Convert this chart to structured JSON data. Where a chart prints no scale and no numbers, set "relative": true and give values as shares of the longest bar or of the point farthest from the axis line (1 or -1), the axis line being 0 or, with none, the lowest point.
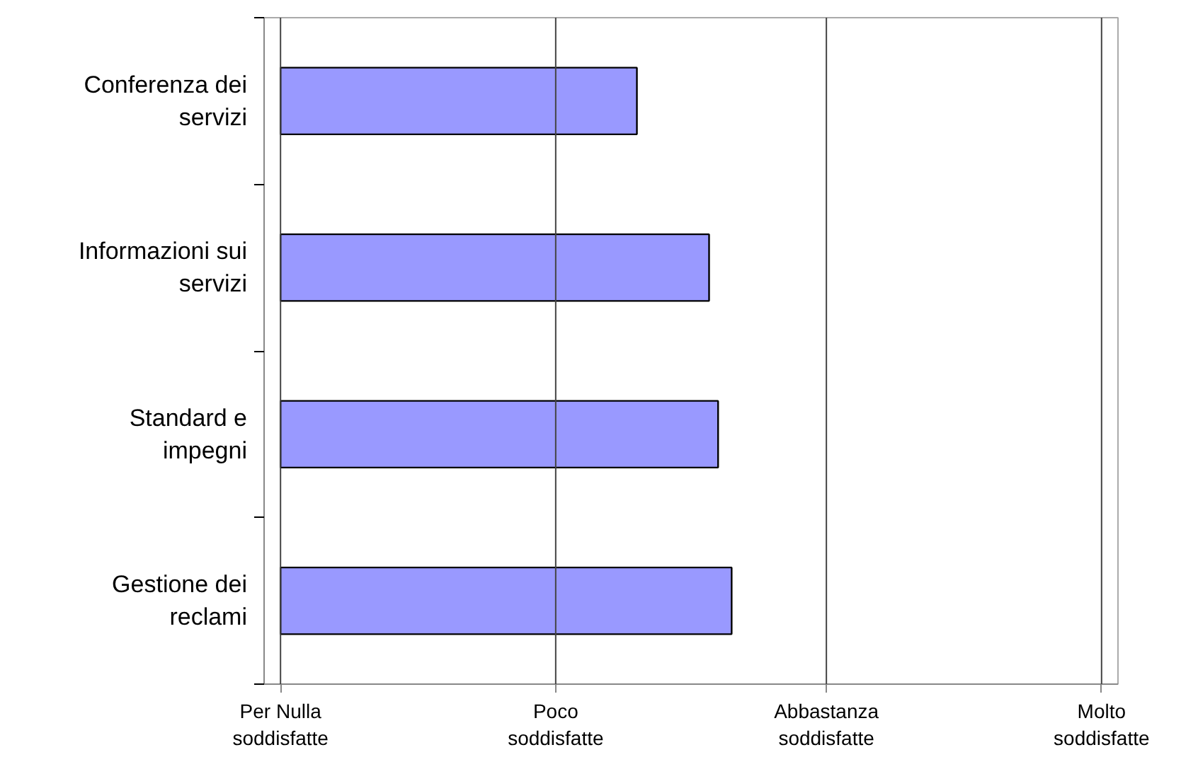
{
  "chart_data": {
    "type": "bar",
    "orientation": "horizontal",
    "relative": true,
    "categories": [
      "Conferenza dei servizi",
      "Informazioni sui servizi",
      "Standard e impegni",
      "Gestione dei reclami"
    ],
    "values": [
      0.79,
      0.95,
      0.97,
      1
    ],
    "color": "#9999ff",
    "ref_lines": [
      {
        "axis": "x",
        "value": 0,
        "label": "Per Nulla soddisfatte"
      },
      {
        "axis": "x",
        "value": 0.61,
        "label": "Poco soddisfatte"
      },
      {
        "axis": "x",
        "value": 1.21,
        "label": "Abbastanza soddisfatte"
      },
      {
        "axis": "x",
        "value": 1.82,
        "label": "Molto soddisfatte"
      }
    ]
  }
}
